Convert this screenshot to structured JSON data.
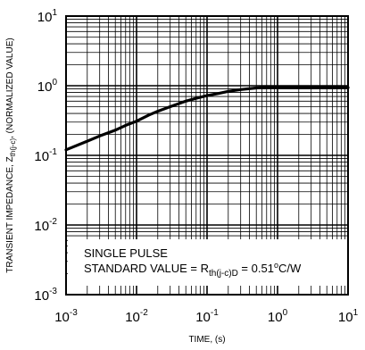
{
  "chart_data": {
    "type": "line",
    "xlabel": "TIME, (s)",
    "ylabel": {
      "main": "TRANSIENT IMPEDANCE, Z",
      "sub": "th(j-c)",
      "suffix": ", (NORMALIZED VALUE)"
    },
    "x_scale": "log",
    "y_scale": "log",
    "xlim": [
      0.001,
      10
    ],
    "ylim": [
      0.001,
      10
    ],
    "grid": true,
    "x_ticks": [
      {
        "base": "10",
        "exp": "-3",
        "value": 0.001
      },
      {
        "base": "10",
        "exp": "-2",
        "value": 0.01
      },
      {
        "base": "10",
        "exp": "-1",
        "value": 0.1
      },
      {
        "base": "10",
        "exp": "0",
        "value": 1
      },
      {
        "base": "10",
        "exp": "1",
        "value": 10
      }
    ],
    "y_ticks": [
      {
        "base": "10",
        "exp": "1",
        "value": 10
      },
      {
        "base": "10",
        "exp": "0",
        "value": 1
      },
      {
        "base": "10",
        "exp": "-1",
        "value": 0.1
      },
      {
        "base": "10",
        "exp": "-2",
        "value": 0.01
      },
      {
        "base": "10",
        "exp": "-3",
        "value": 0.001
      }
    ],
    "series": [
      {
        "x": [
          0.001,
          0.002,
          0.003,
          0.005,
          0.007,
          0.01,
          0.015,
          0.02,
          0.03,
          0.05,
          0.07,
          0.1,
          0.15,
          0.2,
          0.3,
          0.5,
          0.7,
          1,
          2,
          5,
          10
        ],
        "y": [
          0.12,
          0.16,
          0.19,
          0.23,
          0.27,
          0.31,
          0.38,
          0.43,
          0.5,
          0.6,
          0.66,
          0.72,
          0.78,
          0.83,
          0.88,
          0.93,
          0.95,
          0.95,
          0.94,
          0.94,
          0.94
        ]
      }
    ],
    "annotations": {
      "line1": "SINGLE PULSE",
      "line2_prefix": "STANDARD VALUE = R",
      "line2_sub": "th(j-c)D",
      "line2_value": " = 0.51",
      "line2_degree": "o",
      "line2_unit": "C/W"
    }
  }
}
